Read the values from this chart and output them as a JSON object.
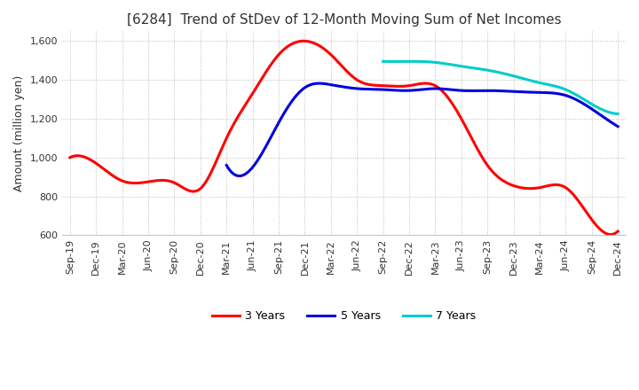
{
  "title": "[6284]  Trend of StDev of 12-Month Moving Sum of Net Incomes",
  "ylabel": "Amount (million yen)",
  "ylim": [
    600,
    1650
  ],
  "yticks": [
    600,
    800,
    1000,
    1200,
    1400,
    1600
  ],
  "background_color": "#ffffff",
  "grid_color": "#bbbbbb",
  "series": {
    "3 Years": {
      "color": "#ff0000",
      "values": [
        1000,
        970,
        880,
        875,
        870,
        840,
        1100,
        1330,
        1530,
        1600,
        1530,
        1400,
        1370,
        1370,
        1370,
        1200,
        960,
        855,
        845,
        845,
        680,
        620
      ]
    },
    "5 Years": {
      "color": "#0000dd",
      "values": [
        null,
        null,
        null,
        null,
        null,
        null,
        960,
        950,
        1180,
        1360,
        1375,
        1355,
        1350,
        1345,
        1355,
        1345,
        1345,
        1340,
        1335,
        1320,
        1250,
        1160
      ]
    },
    "7 Years": {
      "color": "#00cccc",
      "values": [
        null,
        null,
        null,
        null,
        null,
        null,
        null,
        null,
        null,
        null,
        null,
        null,
        1495,
        1495,
        1490,
        1470,
        1450,
        1420,
        1385,
        1350,
        1275,
        1225
      ]
    },
    "10 Years": {
      "color": "#006600",
      "values": [
        null,
        null,
        null,
        null,
        null,
        null,
        null,
        null,
        null,
        null,
        null,
        null,
        null,
        null,
        null,
        null,
        null,
        null,
        null,
        null,
        null,
        null
      ]
    }
  },
  "dates": [
    "Sep-19",
    "Dec-19",
    "Mar-20",
    "Jun-20",
    "Sep-20",
    "Dec-20",
    "Mar-21",
    "Jun-21",
    "Sep-21",
    "Dec-21",
    "Mar-22",
    "Jun-22",
    "Sep-22",
    "Dec-22",
    "Mar-23",
    "Jun-23",
    "Sep-23",
    "Dec-23",
    "Mar-24",
    "Jun-24",
    "Sep-24",
    "Dec-24"
  ]
}
